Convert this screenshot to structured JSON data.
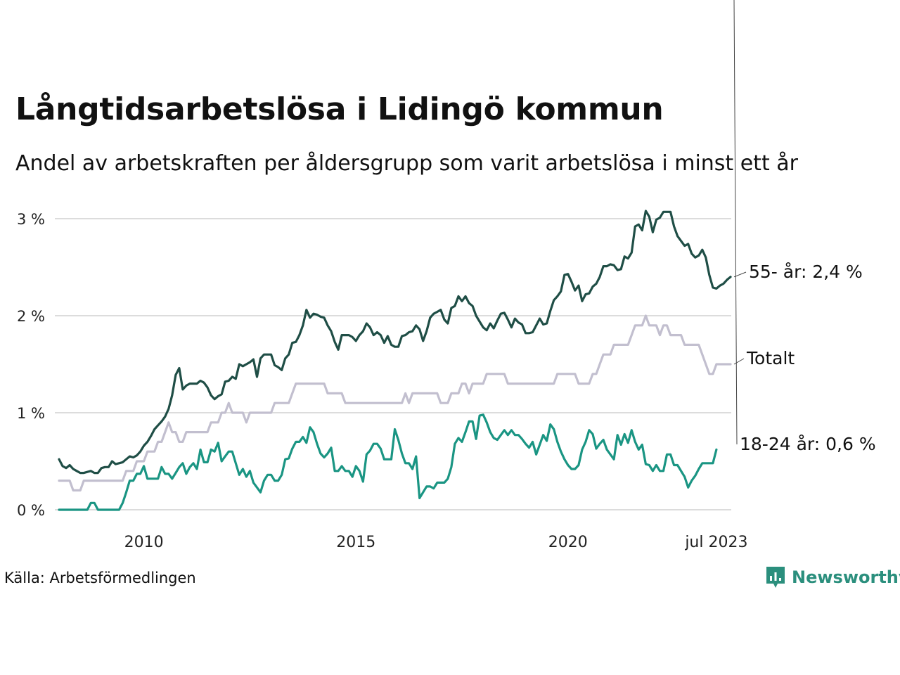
{
  "title": "Långtidsarbetslösa i Lidingö kommun",
  "subtitle": "Andel av arbetskraften per åldersgrupp som varit arbetslösa i minst ett år",
  "source": "Källa: Arbetsförmedlingen",
  "brand": {
    "name": "Newsworthy",
    "icon": "newsworthy-logo-icon",
    "color": "#2b8f7d"
  },
  "chart_data": {
    "type": "line",
    "title": "Långtidsarbetslösa i Lidingö kommun",
    "subtitle": "Andel av arbetskraften per åldersgrupp som varit arbetslösa i minst ett år",
    "xlabel": "",
    "ylabel": "",
    "x_start": "2008-01",
    "x_end": "2023-07",
    "x_frequency": "monthly",
    "x_ticks": [
      {
        "label": "2010",
        "month_index": 24
      },
      {
        "label": "2015",
        "month_index": 84
      },
      {
        "label": "2020",
        "month_index": 144
      },
      {
        "label": "jul 2023",
        "month_index": 186
      }
    ],
    "ylim": [
      0,
      3
    ],
    "y_ticks": [
      {
        "value": 0,
        "label": "0 %"
      },
      {
        "value": 1,
        "label": "1 %"
      },
      {
        "value": 2,
        "label": "2 %"
      },
      {
        "value": 3,
        "label": "3 %"
      }
    ],
    "grid": true,
    "legend": "direct-labels-right",
    "series": [
      {
        "name": "Totalt",
        "label": "Totalt",
        "color": "#c2bfcf",
        "values": [
          0.3,
          0.3,
          0.3,
          0.3,
          0.2,
          0.2,
          0.2,
          0.3,
          0.3,
          0.3,
          0.3,
          0.3,
          0.3,
          0.3,
          0.3,
          0.3,
          0.3,
          0.3,
          0.3,
          0.4,
          0.4,
          0.4,
          0.5,
          0.5,
          0.5,
          0.6,
          0.6,
          0.6,
          0.7,
          0.7,
          0.8,
          0.9,
          0.8,
          0.8,
          0.7,
          0.7,
          0.8,
          0.8,
          0.8,
          0.8,
          0.8,
          0.8,
          0.8,
          0.9,
          0.9,
          0.9,
          1.0,
          1.0,
          1.1,
          1.0,
          1.0,
          1.0,
          1.0,
          0.9,
          1.0,
          1.0,
          1.0,
          1.0,
          1.0,
          1.0,
          1.0,
          1.1,
          1.1,
          1.1,
          1.1,
          1.1,
          1.2,
          1.3,
          1.3,
          1.3,
          1.3,
          1.3,
          1.3,
          1.3,
          1.3,
          1.3,
          1.2,
          1.2,
          1.2,
          1.2,
          1.2,
          1.1,
          1.1,
          1.1,
          1.1,
          1.1,
          1.1,
          1.1,
          1.1,
          1.1,
          1.1,
          1.1,
          1.1,
          1.1,
          1.1,
          1.1,
          1.1,
          1.1,
          1.2,
          1.1,
          1.2,
          1.2,
          1.2,
          1.2,
          1.2,
          1.2,
          1.2,
          1.2,
          1.1,
          1.1,
          1.1,
          1.2,
          1.2,
          1.2,
          1.3,
          1.3,
          1.2,
          1.3,
          1.3,
          1.3,
          1.3,
          1.4,
          1.4,
          1.4,
          1.4,
          1.4,
          1.4,
          1.3,
          1.3,
          1.3,
          1.3,
          1.3,
          1.3,
          1.3,
          1.3,
          1.3,
          1.3,
          1.3,
          1.3,
          1.3,
          1.3,
          1.4,
          1.4,
          1.4,
          1.4,
          1.4,
          1.4,
          1.3,
          1.3,
          1.3,
          1.3,
          1.4,
          1.4,
          1.5,
          1.6,
          1.6,
          1.6,
          1.7,
          1.7,
          1.7,
          1.7,
          1.7,
          1.8,
          1.9,
          1.9,
          1.9,
          2.0,
          1.9,
          1.9,
          1.9,
          1.8,
          1.9,
          1.9,
          1.8,
          1.8,
          1.8,
          1.8,
          1.7,
          1.7,
          1.7,
          1.7,
          1.7,
          1.6,
          1.5,
          1.4,
          1.4,
          1.5,
          1.5,
          1.5,
          1.5,
          1.5
        ],
        "last_value_label": "Totalt"
      },
      {
        "name": "55- år",
        "label": "55- år: 2,4 %",
        "color": "#1f4e46",
        "values": [
          0.52,
          0.45,
          0.43,
          0.46,
          0.42,
          0.4,
          0.38,
          0.38,
          0.39,
          0.4,
          0.38,
          0.38,
          0.43,
          0.44,
          0.44,
          0.5,
          0.47,
          0.48,
          0.49,
          0.52,
          0.55,
          0.54,
          0.56,
          0.6,
          0.66,
          0.7,
          0.76,
          0.83,
          0.87,
          0.91,
          0.96,
          1.04,
          1.18,
          1.39,
          1.46,
          1.24,
          1.28,
          1.3,
          1.3,
          1.3,
          1.33,
          1.31,
          1.26,
          1.18,
          1.14,
          1.17,
          1.19,
          1.32,
          1.33,
          1.37,
          1.35,
          1.5,
          1.48,
          1.5,
          1.52,
          1.55,
          1.37,
          1.56,
          1.6,
          1.6,
          1.6,
          1.49,
          1.47,
          1.44,
          1.56,
          1.6,
          1.72,
          1.73,
          1.8,
          1.9,
          2.06,
          1.98,
          2.02,
          2.01,
          1.99,
          1.98,
          1.9,
          1.84,
          1.73,
          1.65,
          1.8,
          1.8,
          1.8,
          1.78,
          1.74,
          1.8,
          1.84,
          1.92,
          1.88,
          1.8,
          1.83,
          1.8,
          1.72,
          1.79,
          1.7,
          1.68,
          1.68,
          1.79,
          1.8,
          1.83,
          1.84,
          1.9,
          1.86,
          1.74,
          1.84,
          1.98,
          2.02,
          2.04,
          2.06,
          1.96,
          1.92,
          2.08,
          2.1,
          2.2,
          2.15,
          2.2,
          2.13,
          2.1,
          2.0,
          1.94,
          1.88,
          1.85,
          1.92,
          1.87,
          1.95,
          2.02,
          2.03,
          1.96,
          1.88,
          1.97,
          1.93,
          1.91,
          1.82,
          1.82,
          1.83,
          1.9,
          1.97,
          1.91,
          1.92,
          2.05,
          2.16,
          2.2,
          2.25,
          2.42,
          2.43,
          2.35,
          2.26,
          2.31,
          2.15,
          2.22,
          2.23,
          2.3,
          2.33,
          2.4,
          2.51,
          2.51,
          2.53,
          2.52,
          2.47,
          2.48,
          2.61,
          2.59,
          2.65,
          2.92,
          2.94,
          2.88,
          3.08,
          3.02,
          2.86,
          2.99,
          3.01,
          3.07,
          3.07,
          3.07,
          2.92,
          2.82,
          2.77,
          2.72,
          2.74,
          2.64,
          2.6,
          2.62,
          2.68,
          2.6,
          2.42,
          2.29,
          2.28,
          2.31,
          2.33,
          2.37,
          2.4
        ],
        "last_value_label": "2,4 %"
      },
      {
        "name": "18-24 år",
        "label": "18-24 år: 0,6 %",
        "color": "#1a9583",
        "values": [
          0.0,
          0.0,
          0.0,
          0.0,
          0.0,
          0.0,
          0.0,
          0.0,
          0.0,
          0.07,
          0.07,
          0.0,
          0.0,
          0.0,
          0.0,
          0.0,
          0.0,
          0.0,
          0.07,
          0.18,
          0.3,
          0.3,
          0.37,
          0.37,
          0.45,
          0.32,
          0.32,
          0.32,
          0.32,
          0.44,
          0.37,
          0.37,
          0.32,
          0.38,
          0.44,
          0.48,
          0.37,
          0.44,
          0.48,
          0.42,
          0.62,
          0.49,
          0.49,
          0.62,
          0.6,
          0.69,
          0.5,
          0.55,
          0.6,
          0.6,
          0.48,
          0.36,
          0.42,
          0.34,
          0.4,
          0.28,
          0.23,
          0.18,
          0.3,
          0.36,
          0.36,
          0.3,
          0.3,
          0.36,
          0.52,
          0.53,
          0.63,
          0.7,
          0.7,
          0.75,
          0.69,
          0.85,
          0.8,
          0.68,
          0.58,
          0.54,
          0.58,
          0.64,
          0.4,
          0.4,
          0.45,
          0.4,
          0.4,
          0.34,
          0.45,
          0.4,
          0.29,
          0.57,
          0.61,
          0.68,
          0.68,
          0.63,
          0.52,
          0.52,
          0.52,
          0.83,
          0.72,
          0.58,
          0.48,
          0.48,
          0.42,
          0.55,
          0.12,
          0.18,
          0.24,
          0.24,
          0.22,
          0.28,
          0.28,
          0.28,
          0.32,
          0.44,
          0.68,
          0.74,
          0.7,
          0.8,
          0.91,
          0.91,
          0.73,
          0.97,
          0.98,
          0.9,
          0.8,
          0.74,
          0.72,
          0.77,
          0.82,
          0.77,
          0.82,
          0.77,
          0.77,
          0.73,
          0.68,
          0.64,
          0.7,
          0.57,
          0.67,
          0.77,
          0.71,
          0.88,
          0.83,
          0.7,
          0.6,
          0.52,
          0.46,
          0.42,
          0.42,
          0.46,
          0.62,
          0.7,
          0.82,
          0.78,
          0.63,
          0.68,
          0.72,
          0.62,
          0.57,
          0.52,
          0.77,
          0.67,
          0.78,
          0.69,
          0.82,
          0.7,
          0.62,
          0.67,
          0.47,
          0.46,
          0.4,
          0.46,
          0.4,
          0.4,
          0.57,
          0.57,
          0.46,
          0.46,
          0.4,
          0.34,
          0.23,
          0.3,
          0.35,
          0.42,
          0.48,
          0.48,
          0.48,
          0.48,
          0.62
        ],
        "last_value_label": "0,6 %"
      }
    ]
  }
}
